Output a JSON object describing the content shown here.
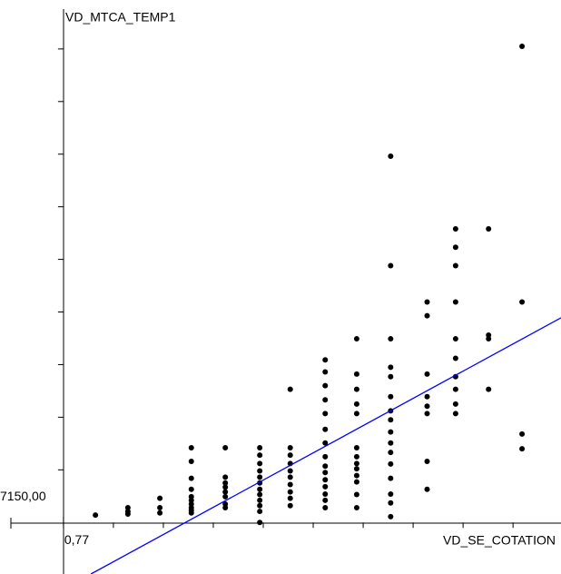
{
  "chart_data": {
    "type": "scatter",
    "y_label": "VD_MTCA_TEMP1",
    "x_label": "VD_SE_COTATION",
    "xlim": [
      -0.5,
      10.73
    ],
    "ylim": [
      7149.02,
      7159.93
    ],
    "xticks": [
      {
        "value": 0.77,
        "label": "0,77"
      }
    ],
    "yticks": [
      {
        "value": 7150,
        "label": "7150,00"
      }
    ],
    "x_minor_ticks": [
      1.77,
      2.77,
      3.77,
      4.77,
      5.77,
      6.77,
      7.77,
      8.77,
      9.77
    ],
    "y_minor_ticks": [
      7151,
      7152,
      7153,
      7154,
      7155,
      7156,
      7157,
      7158,
      7159
    ],
    "color": "#000000",
    "x": [
      1.41,
      2.06,
      2.06,
      2.06,
      2.7,
      2.7,
      2.7,
      3.33,
      3.33,
      3.33,
      3.33,
      3.33,
      3.33,
      3.33,
      3.33,
      3.33,
      3.33,
      4.01,
      4.01,
      4.01,
      4.01,
      4.01,
      4.01,
      4.01,
      4.01,
      4.7,
      4.7,
      4.7,
      4.7,
      4.7,
      4.7,
      4.7,
      4.7,
      4.7,
      4.7,
      4.7,
      4.7,
      5.31,
      5.31,
      5.31,
      5.31,
      5.31,
      5.31,
      5.31,
      5.31,
      5.31,
      5.31,
      6.01,
      6.01,
      6.01,
      6.01,
      6.01,
      6.01,
      6.01,
      6.01,
      6.01,
      6.01,
      6.01,
      6.01,
      6.01,
      6.01,
      6.01,
      6.64,
      6.64,
      6.64,
      6.64,
      6.64,
      6.64,
      6.64,
      6.64,
      6.64,
      6.64,
      6.64,
      6.64,
      6.64,
      7.32,
      7.32,
      7.32,
      7.32,
      7.32,
      7.32,
      7.32,
      7.32,
      7.32,
      7.32,
      7.32,
      7.32,
      7.32,
      7.32,
      7.32,
      7.32,
      8.05,
      8.05,
      8.05,
      8.05,
      8.05,
      8.05,
      8.05,
      8.05,
      8.62,
      8.62,
      8.62,
      8.62,
      8.62,
      8.62,
      8.62,
      8.62,
      8.62,
      8.62,
      9.28,
      9.28,
      9.28,
      9.28,
      9.95,
      9.95,
      9.95,
      9.95
    ],
    "y": [
      7150.14,
      7150.28,
      7150.21,
      7150.16,
      7150.46,
      7150.28,
      7150.18,
      7151.42,
      7151.16,
      7150.84,
      7150.63,
      7150.49,
      7150.42,
      7150.35,
      7150.28,
      7150.23,
      7150.18,
      7151.42,
      7150.86,
      7150.75,
      7150.67,
      7150.58,
      7150.49,
      7150.35,
      7150.28,
      7151.42,
      7151.28,
      7151.12,
      7150.98,
      7150.86,
      7150.75,
      7150.63,
      7150.53,
      7150.42,
      7150.32,
      7150.21,
      7150.0,
      7152.53,
      7151.42,
      7151.28,
      7151.12,
      7150.98,
      7150.86,
      7150.72,
      7150.58,
      7150.46,
      7150.32,
      7153.09,
      7152.86,
      7152.6,
      7152.33,
      7152.07,
      7151.77,
      7151.51,
      7151.25,
      7151.07,
      7150.95,
      7150.81,
      7150.68,
      7150.54,
      7150.42,
      7150.28,
      7153.49,
      7152.82,
      7152.53,
      7152.25,
      7152.07,
      7151.42,
      7151.25,
      7151.12,
      7151.02,
      7150.89,
      7150.77,
      7150.53,
      7150.28,
      7156.96,
      7154.88,
      7153.49,
      7152.95,
      7152.77,
      7152.39,
      7152.12,
      7151.95,
      7151.72,
      7151.51,
      7151.33,
      7151.11,
      7150.84,
      7150.54,
      7150.37,
      7150.11,
      7154.19,
      7153.93,
      7152.82,
      7152.39,
      7152.21,
      7152.07,
      7151.16,
      7150.63,
      7155.58,
      7155.23,
      7154.88,
      7154.19,
      7153.49,
      7153.12,
      7152.77,
      7152.53,
      7152.25,
      7152.07,
      7155.58,
      7153.56,
      7153.49,
      7152.53,
      7159.05,
      7154.19,
      7151.68,
      7151.4
    ],
    "trend_line": {
      "color": "#0000ff",
      "x": [
        1.32,
        10.73
      ],
      "y": [
        7149.02,
        7153.89
      ]
    }
  }
}
